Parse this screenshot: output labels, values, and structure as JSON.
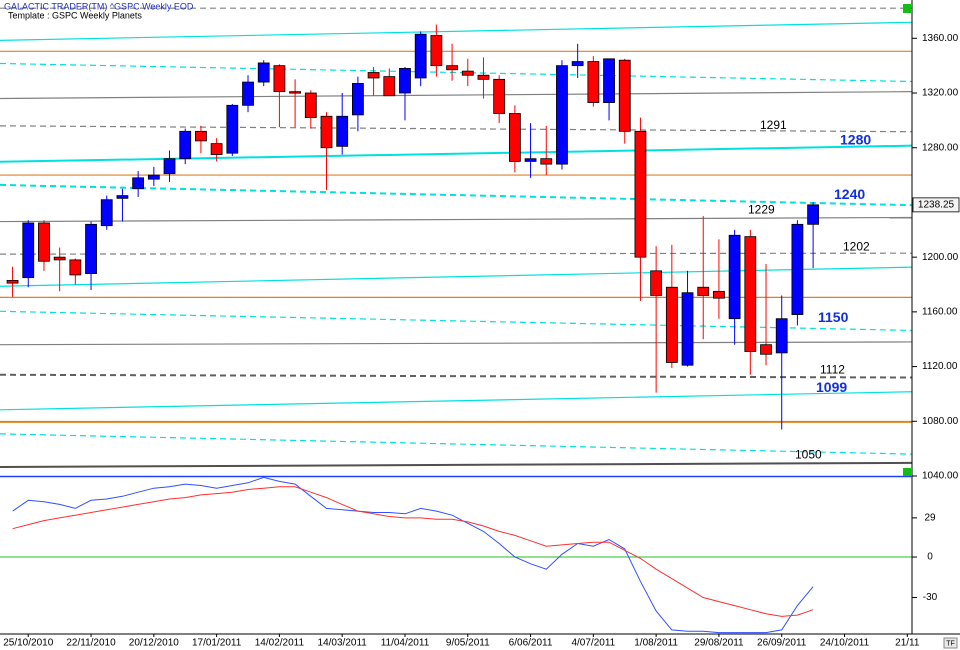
{
  "chart_data": [
    {
      "type": "candlestick",
      "title": "GALACTIC TRADER(TM)   ^GSPC Weekly  EOD",
      "subtitle": "Template : GSPC Weekly Planets",
      "x": [
        0,
        1,
        2,
        3,
        4,
        5,
        6,
        7,
        8,
        9,
        10,
        11,
        12,
        13,
        14,
        15,
        16,
        17,
        18,
        19,
        20,
        21,
        22,
        23,
        24,
        25,
        26,
        27,
        28,
        29,
        30,
        31,
        32,
        33,
        34,
        35,
        36,
        37,
        38,
        39,
        40,
        41,
        42,
        43,
        44,
        45,
        46,
        47,
        48,
        49,
        50,
        51
      ],
      "open": [
        1183,
        1185,
        1225,
        1200,
        1198,
        1188,
        1223,
        1243,
        1250,
        1257,
        1261,
        1272,
        1292,
        1283,
        1276,
        1311,
        1328,
        1340,
        1321,
        1320,
        1303,
        1281,
        1304,
        1335,
        1332,
        1320,
        1331,
        1362,
        1340,
        1336,
        1333,
        1330,
        1305,
        1270,
        1272,
        1268,
        1340,
        1343,
        1313,
        1344,
        1292,
        1190,
        1178,
        1121,
        1178,
        1175,
        1155,
        1215,
        1136,
        1130,
        1158,
        1224
      ],
      "high": [
        1193,
        1227,
        1227,
        1207,
        1199,
        1226,
        1245,
        1250,
        1263,
        1266,
        1278,
        1294,
        1296,
        1287,
        1312,
        1333,
        1344,
        1341,
        1330,
        1322,
        1306,
        1320,
        1332,
        1339,
        1338,
        1339,
        1365,
        1370,
        1356,
        1345,
        1346,
        1333,
        1311,
        1298,
        1296,
        1344,
        1356,
        1347,
        1345,
        1345,
        1302,
        1208,
        1209,
        1190,
        1230,
        1213,
        1220,
        1220,
        1195,
        1172,
        1227,
        1240
      ],
      "low": [
        1171,
        1178,
        1190,
        1175,
        1180,
        1176,
        1220,
        1226,
        1244,
        1252,
        1255,
        1268,
        1276,
        1270,
        1274,
        1306,
        1325,
        1295,
        1295,
        1294,
        1249,
        1275,
        1292,
        1318,
        1318,
        1300,
        1325,
        1332,
        1329,
        1325,
        1316,
        1298,
        1262,
        1258,
        1260,
        1264,
        1331,
        1310,
        1300,
        1283,
        1168,
        1101,
        1119,
        1120,
        1140,
        1155,
        1136,
        1114,
        1121,
        1074,
        1150,
        1192
      ],
      "close": [
        1181,
        1225,
        1197,
        1198,
        1187,
        1224,
        1242,
        1245,
        1258,
        1260,
        1272,
        1292,
        1285,
        1275,
        1311,
        1328,
        1342,
        1321,
        1320,
        1302,
        1280,
        1303,
        1327,
        1331,
        1318,
        1338,
        1363,
        1340,
        1337,
        1333,
        1330,
        1305,
        1270,
        1272,
        1268,
        1340,
        1343,
        1313,
        1345,
        1292,
        1200,
        1172,
        1123,
        1174,
        1172,
        1170,
        1216,
        1131,
        1129,
        1155,
        1224,
        1238.25
      ],
      "up_color": "#0000ff",
      "down_color": "#ff0000",
      "xlim": [
        -0.8,
        57.3
      ],
      "ylim": [
        1040,
        1388
      ],
      "yticks": [
        {
          "value": 1040,
          "label": "1040.00"
        },
        {
          "value": 1080,
          "label": "1080.00"
        },
        {
          "value": 1120,
          "label": "1120.00"
        },
        {
          "value": 1160,
          "label": "1160.00"
        },
        {
          "value": 1200,
          "label": "1200.00"
        },
        {
          "value": 1280,
          "label": "1280.00"
        },
        {
          "value": 1320,
          "label": "1320.00"
        },
        {
          "value": 1360,
          "label": "1360.00"
        }
      ],
      "levels": [
        {
          "start": 1382,
          "end": 1382,
          "color": "#808080",
          "style": "dashed"
        },
        {
          "start": 1358.5,
          "end": 1371.7,
          "color": "#00e0e0",
          "style": "solid"
        },
        {
          "start": 1350.5,
          "end": 1350.5,
          "color": "#e08020",
          "style": "solid"
        },
        {
          "start": 1341.6,
          "end": 1328.4,
          "color": "#00e0e0",
          "style": "dashed"
        },
        {
          "start": 1316,
          "end": 1321,
          "color": "#808080",
          "style": "solid"
        },
        {
          "start": 1296,
          "end": 1291.7,
          "color": "#808080",
          "style": "dashed"
        },
        {
          "start": 1269.7,
          "end": 1281.5,
          "color": "#00e0e0",
          "style": "solid-bold"
        },
        {
          "start": 1260,
          "end": 1260,
          "color": "#e08020",
          "style": "solid"
        },
        {
          "start": 1252.8,
          "end": 1238,
          "color": "#00e0e0",
          "style": "dashed-bold"
        },
        {
          "start": 1226,
          "end": 1229,
          "color": "#808080",
          "style": "solid"
        },
        {
          "start": 1202.2,
          "end": 1202.9,
          "color": "#808080",
          "style": "dashed"
        },
        {
          "start": 1178.7,
          "end": 1192.7,
          "color": "#00e0e0",
          "style": "solid"
        },
        {
          "start": 1170.6,
          "end": 1170.6,
          "color": "#e08020",
          "style": "solid"
        },
        {
          "start": 1160.4,
          "end": 1146.4,
          "color": "#00e0e0",
          "style": "dashed"
        },
        {
          "start": 1136,
          "end": 1138,
          "color": "#808080",
          "style": "solid"
        },
        {
          "start": 1114,
          "end": 1112,
          "color": "#606060",
          "style": "dashed-bold"
        },
        {
          "start": 1088.4,
          "end": 1101.6,
          "color": "#00e0e0",
          "style": "solid"
        },
        {
          "start": 1079.6,
          "end": 1079.6,
          "color": "#e08020",
          "style": "solid-bold"
        },
        {
          "start": 1070.8,
          "end": 1056,
          "color": "#00e0e0",
          "style": "dashed"
        },
        {
          "start": 1046.6,
          "end": 1049.6,
          "color": "#505050",
          "style": "solid-bold"
        }
      ],
      "level_labels": [
        {
          "value": 1291,
          "color": "#000000",
          "weight": "normal"
        },
        {
          "value": 1280,
          "color": "#1030e0",
          "weight": "bold"
        },
        {
          "value": 1240,
          "color": "#1030e0",
          "weight": "bold"
        },
        {
          "value": 1229,
          "color": "#000000",
          "weight": "normal"
        },
        {
          "value": 1202,
          "color": "#000000",
          "weight": "normal"
        },
        {
          "value": 1150,
          "color": "#1030e0",
          "weight": "bold"
        },
        {
          "value": 1112,
          "color": "#000000",
          "weight": "normal"
        },
        {
          "value": 1099,
          "color": "#1030e0",
          "weight": "bold"
        },
        {
          "value": 1050,
          "color": "#000000",
          "weight": "normal"
        }
      ]
    },
    {
      "type": "line",
      "x": [
        0,
        1,
        2,
        3,
        4,
        5,
        6,
        7,
        8,
        9,
        10,
        11,
        12,
        13,
        14,
        15,
        16,
        17,
        18,
        19,
        20,
        21,
        22,
        23,
        24,
        25,
        26,
        27,
        28,
        29,
        30,
        31,
        32,
        33,
        34,
        35,
        36,
        37,
        38,
        39,
        40,
        41,
        42,
        43,
        44,
        45,
        46,
        47,
        48,
        49,
        50,
        51
      ],
      "series": [
        {
          "color": "#3050ff",
          "values": [
            34,
            42,
            41,
            39,
            36,
            42,
            43,
            45,
            48,
            51,
            52,
            54,
            53,
            51,
            53,
            55,
            59,
            56,
            54,
            45,
            36,
            35,
            34,
            33,
            33,
            32,
            36,
            34,
            31,
            25,
            19,
            10,
            0,
            -5,
            -9,
            2,
            10,
            8,
            13,
            6,
            -18,
            -40,
            -54,
            -55,
            -55,
            -56,
            -56,
            -56,
            -56,
            -54,
            -36,
            -22
          ]
        },
        {
          "color": "#ff3030",
          "values": [
            21,
            24,
            27,
            29,
            31,
            33,
            35,
            37,
            39,
            41,
            43,
            44,
            46,
            47,
            48,
            50,
            51,
            52,
            52,
            48,
            44,
            39,
            34,
            32,
            30,
            29,
            29,
            28,
            28,
            26,
            23,
            19,
            16,
            12,
            8,
            9,
            10,
            11,
            11,
            5,
            -1,
            -9,
            -16,
            -23,
            -30,
            -33,
            -36,
            -39,
            -42,
            -44,
            -43,
            -39
          ]
        }
      ],
      "reference_line": {
        "value": 0,
        "color": "#20c020"
      },
      "xlim": [
        -0.8,
        57.3
      ],
      "ylim": [
        -57,
        60
      ],
      "yticks": [
        -30,
        0,
        29
      ],
      "xticks": [
        {
          "value": 1,
          "label": "25/10/2010"
        },
        {
          "value": 5,
          "label": "22/11/2010"
        },
        {
          "value": 9,
          "label": "20/12/2010"
        },
        {
          "value": 13,
          "label": "17/01/2011"
        },
        {
          "value": 17,
          "label": "14/02/2011"
        },
        {
          "value": 21,
          "label": "14/03/2011"
        },
        {
          "value": 25,
          "label": "11/04/2011"
        },
        {
          "value": 29,
          "label": "9/05/2011"
        },
        {
          "value": 33,
          "label": "6/06/2011"
        },
        {
          "value": 37,
          "label": "4/07/2011"
        },
        {
          "value": 41,
          "label": "1/08/2011"
        },
        {
          "value": 45,
          "label": "29/08/2011"
        },
        {
          "value": 49,
          "label": "26/09/2011"
        },
        {
          "value": 53,
          "label": "24/10/2011"
        },
        {
          "value": 57,
          "label": "21/11"
        }
      ]
    }
  ]
}
